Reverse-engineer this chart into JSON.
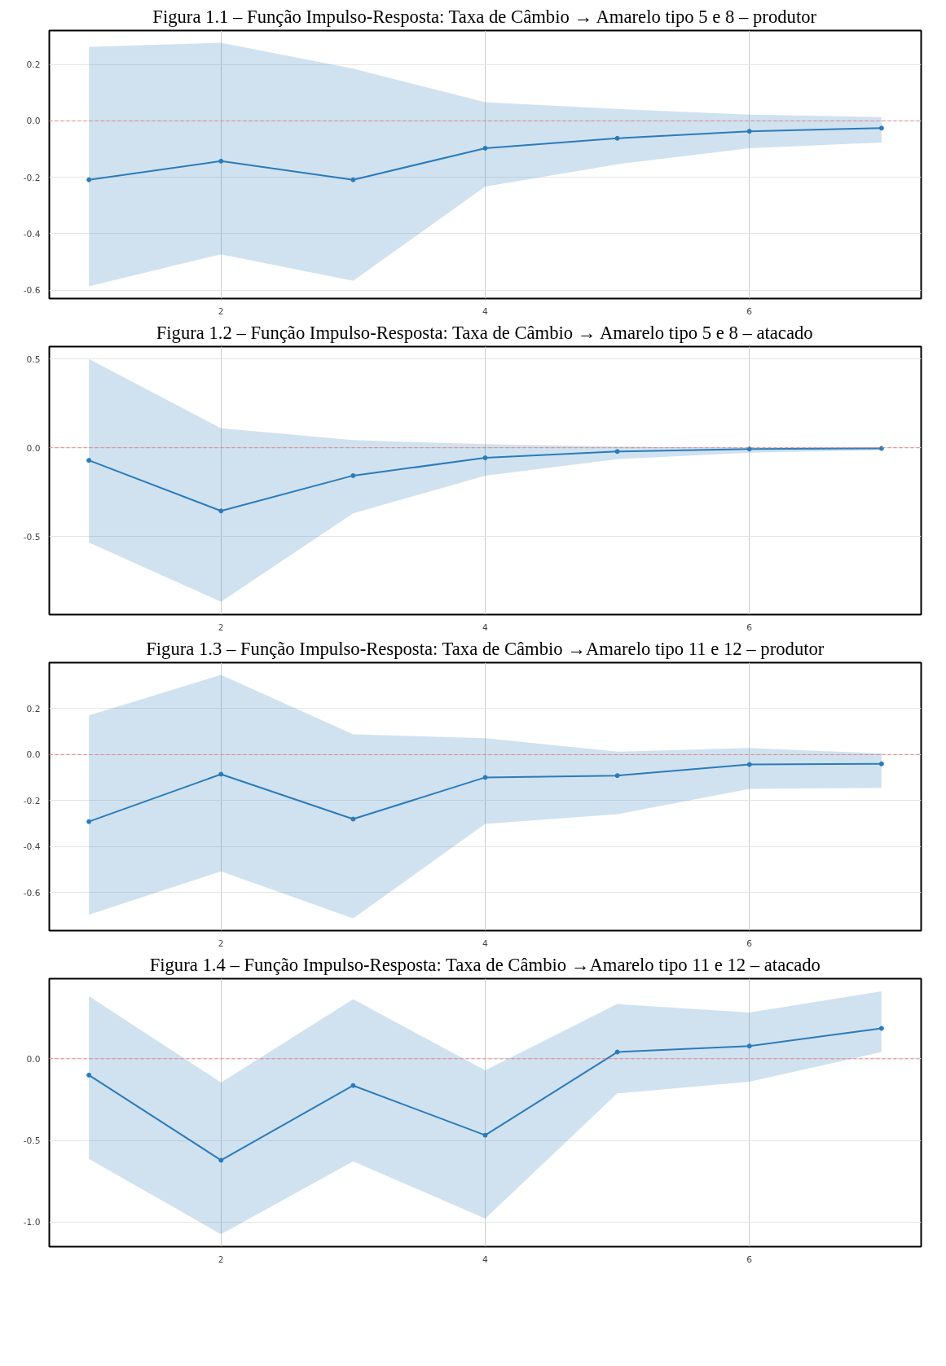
{
  "chart_data": [
    {
      "type": "line",
      "title": "Figura 1.1 – Função Impulso-Resposta: Taxa de Câmbio → Amarelo tipo 5 e 8 – produtor",
      "x": [
        1,
        2,
        3,
        4,
        5,
        6,
        7
      ],
      "xlim": [
        0.7,
        7.3
      ],
      "xticks": [
        2,
        4,
        6
      ],
      "ylim": [
        -0.63,
        0.32
      ],
      "yticks": [
        {
          "value": -0.6,
          "label": "-0.6"
        },
        {
          "value": -0.4,
          "label": "-0.4"
        },
        {
          "value": -0.2,
          "label": "-0.2"
        },
        {
          "value": 0,
          "label": "0.0"
        },
        {
          "value": 0.2,
          "label": "0.2"
        }
      ],
      "grid": true,
      "marker": "circle",
      "line_style": "solid",
      "ref_lines": [
        {
          "axis": "y",
          "value": 0,
          "color": "#f08080",
          "line_style": "dashed"
        }
      ],
      "series": [
        {
          "color": "#2b7bba",
          "values": [
            -0.209,
            -0.143,
            -0.209,
            -0.097,
            -0.062,
            -0.037,
            -0.026
          ],
          "lower": [
            -0.587,
            -0.473,
            -0.567,
            -0.233,
            -0.154,
            -0.097,
            -0.077
          ],
          "upper": [
            0.262,
            0.277,
            0.185,
            0.066,
            0.042,
            0.022,
            0.013
          ]
        }
      ]
    },
    {
      "type": "line",
      "title": "Figura 1.2 – Função Impulso-Resposta: Taxa de Câmbio → Amarelo tipo 5 e 8 – atacado",
      "x": [
        1,
        2,
        3,
        4,
        5,
        6,
        7
      ],
      "xlim": [
        0.7,
        7.3
      ],
      "xticks": [
        2,
        4,
        6
      ],
      "ylim": [
        -0.94,
        0.57
      ],
      "yticks": [
        {
          "value": -0.5,
          "label": "-0.5"
        },
        {
          "value": 0,
          "label": "0.0"
        },
        {
          "value": 0.5,
          "label": "0.5"
        }
      ],
      "grid": true,
      "marker": "circle",
      "line_style": "solid",
      "ref_lines": [
        {
          "axis": "y",
          "value": 0,
          "color": "#f08080",
          "line_style": "dashed"
        }
      ],
      "series": [
        {
          "color": "#2b7bba",
          "values": [
            -0.071,
            -0.356,
            -0.157,
            -0.057,
            -0.021,
            -0.007,
            -0.004
          ],
          "lower": [
            -0.534,
            -0.868,
            -0.37,
            -0.157,
            -0.064,
            -0.028,
            -0.014
          ],
          "upper": [
            0.5,
            0.11,
            0.043,
            0.02,
            0.007,
            0.0,
            0.001
          ]
        }
      ]
    },
    {
      "type": "line",
      "title": "Figura 1.3 – Função Impulso-Resposta: Taxa de Câmbio →Amarelo tipo 11 e 12 – produtor",
      "x": [
        1,
        2,
        3,
        4,
        5,
        6,
        7
      ],
      "xlim": [
        0.7,
        7.3
      ],
      "xticks": [
        2,
        4,
        6
      ],
      "ylim": [
        -0.765,
        0.4
      ],
      "yticks": [
        {
          "value": -0.6,
          "label": "-0.6"
        },
        {
          "value": -0.4,
          "label": "-0.4"
        },
        {
          "value": -0.2,
          "label": "-0.2"
        },
        {
          "value": 0,
          "label": "0.0"
        },
        {
          "value": 0.2,
          "label": "0.2"
        }
      ],
      "grid": true,
      "marker": "circle",
      "line_style": "solid",
      "ref_lines": [
        {
          "axis": "y",
          "value": 0,
          "color": "#f08080",
          "line_style": "dashed"
        }
      ],
      "series": [
        {
          "color": "#2b7bba",
          "values": [
            -0.291,
            -0.085,
            -0.28,
            -0.099,
            -0.091,
            -0.043,
            -0.04
          ],
          "lower": [
            -0.696,
            -0.507,
            -0.712,
            -0.301,
            -0.259,
            -0.149,
            -0.144
          ],
          "upper": [
            0.171,
            0.347,
            0.088,
            0.072,
            0.013,
            0.029,
            0.005
          ]
        }
      ]
    },
    {
      "type": "line",
      "title": "Figura 1.4 – Função Impulso-Resposta: Taxa de Câmbio →Amarelo tipo 11 e 12 – atacado",
      "x": [
        1,
        2,
        3,
        4,
        5,
        6,
        7
      ],
      "xlim": [
        0.7,
        7.3
      ],
      "xticks": [
        2,
        4,
        6
      ],
      "ylim": [
        -1.15,
        0.49
      ],
      "yticks": [
        {
          "value": -1.0,
          "label": "-1.0"
        },
        {
          "value": -0.5,
          "label": "-0.5"
        },
        {
          "value": 0,
          "label": "0.0"
        }
      ],
      "grid": true,
      "marker": "circle",
      "line_style": "solid",
      "ref_lines": [
        {
          "axis": "y",
          "value": 0,
          "color": "#f08080",
          "line_style": "dashed"
        }
      ],
      "series": [
        {
          "color": "#2b7bba",
          "values": [
            -0.1,
            -0.621,
            -0.164,
            -0.468,
            0.041,
            0.078,
            0.186
          ],
          "lower": [
            -0.613,
            -1.074,
            -0.628,
            -0.978,
            -0.212,
            -0.141,
            0.041
          ],
          "upper": [
            0.383,
            -0.145,
            0.364,
            -0.071,
            0.335,
            0.283,
            0.413
          ]
        }
      ]
    }
  ]
}
